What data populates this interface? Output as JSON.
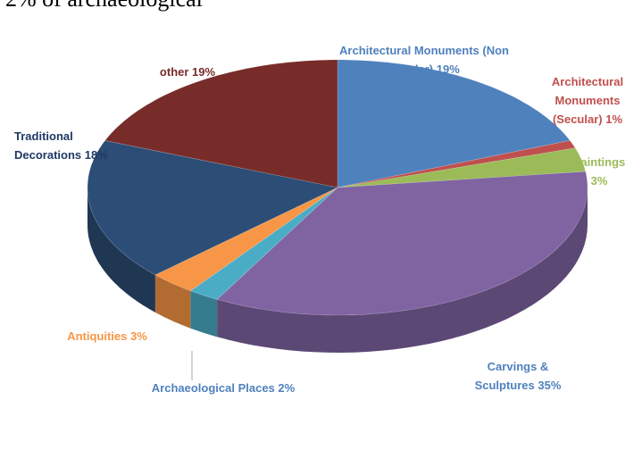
{
  "caption_fragment": "2% of archaeological",
  "chart_data": {
    "type": "pie3d",
    "categories": [
      "Architectural Monuments (Non secular)",
      "Architectural Monuments (Secular)",
      "Paintings",
      "Carvings & Sculptures",
      "Archaeological Places",
      "Antiquities",
      "Traditional Decorations",
      "other"
    ],
    "values": [
      19,
      1,
      3,
      35,
      2,
      3,
      18,
      19
    ],
    "value_labels": [
      "19%",
      "1%",
      "3%",
      "35%",
      "2%",
      "3%",
      "18%",
      "19%"
    ],
    "colors": [
      "#4f81bd",
      "#c0504d",
      "#9bbb59",
      "#8064a2",
      "#4bacc6",
      "#f79646",
      "#2c4d75",
      "#772c2a"
    ],
    "label_colors": [
      "#4f81bd",
      "#c0504d",
      "#9bbb59",
      "#4f81bd",
      "#4f81bd",
      "#f79646",
      "#1f3864",
      "#772c2a"
    ]
  }
}
